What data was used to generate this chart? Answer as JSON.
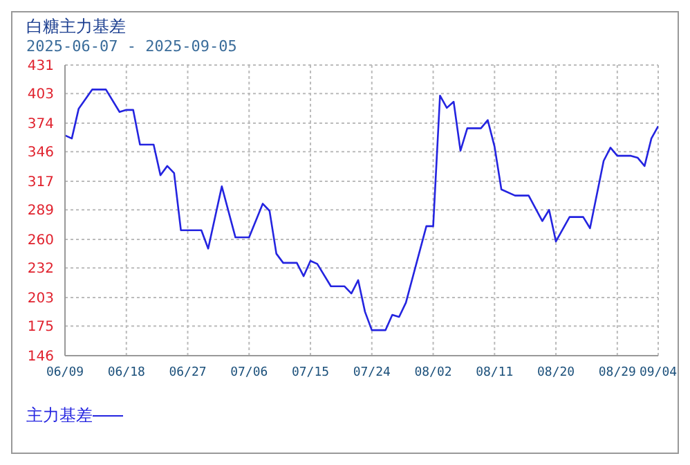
{
  "chart_data": {
    "type": "line",
    "title": "白糖主力基差",
    "subtitle": "2025-06-07 - 2025-09-05",
    "x": [
      "2025-06-09",
      "2025-06-10",
      "2025-06-11",
      "2025-06-13",
      "2025-06-15",
      "2025-06-17",
      "2025-06-18",
      "2025-06-19",
      "2025-06-20",
      "2025-06-22",
      "2025-06-23",
      "2025-06-24",
      "2025-06-25",
      "2025-06-26",
      "2025-06-27",
      "2025-06-29",
      "2025-06-30",
      "2025-07-02",
      "2025-07-04",
      "2025-07-06",
      "2025-07-08",
      "2025-07-09",
      "2025-07-10",
      "2025-07-11",
      "2025-07-13",
      "2025-07-14",
      "2025-07-15",
      "2025-07-16",
      "2025-07-18",
      "2025-07-20",
      "2025-07-21",
      "2025-07-22",
      "2025-07-23",
      "2025-07-24",
      "2025-07-26",
      "2025-07-27",
      "2025-07-28",
      "2025-07-29",
      "2025-08-01",
      "2025-08-02",
      "2025-08-03",
      "2025-08-04",
      "2025-08-05",
      "2025-08-06",
      "2025-08-07",
      "2025-08-09",
      "2025-08-10",
      "2025-08-11",
      "2025-08-12",
      "2025-08-14",
      "2025-08-16",
      "2025-08-18",
      "2025-08-19",
      "2025-08-20",
      "2025-08-22",
      "2025-08-24",
      "2025-08-25",
      "2025-08-27",
      "2025-08-28",
      "2025-08-29",
      "2025-08-31",
      "2025-09-01",
      "2025-09-02",
      "2025-09-03",
      "2025-09-04"
    ],
    "series": [
      {
        "name": "主力基差",
        "color": "#2424e0",
        "values": [
          362,
          359,
          388,
          407,
          407,
          385,
          387,
          387,
          353,
          353,
          323,
          332,
          325,
          269,
          269,
          269,
          251,
          312,
          262,
          262,
          295,
          288,
          246,
          237,
          237,
          224,
          239,
          236,
          214,
          214,
          207,
          220,
          189,
          171,
          171,
          186,
          184,
          198,
          273,
          273,
          401,
          389,
          395,
          347,
          369,
          369,
          377,
          351,
          309,
          303,
          303,
          278,
          289,
          258,
          282,
          282,
          271,
          337,
          350,
          342,
          342,
          340,
          332,
          359,
          371
        ]
      }
    ],
    "xlim": [
      "2025-06-09",
      "2025-09-04"
    ],
    "xticks": [
      {
        "value": "2025-06-09",
        "label": "06/09"
      },
      {
        "value": "2025-06-18",
        "label": "06/18"
      },
      {
        "value": "2025-06-27",
        "label": "06/27"
      },
      {
        "value": "2025-07-06",
        "label": "07/06"
      },
      {
        "value": "2025-07-15",
        "label": "07/15"
      },
      {
        "value": "2025-07-24",
        "label": "07/24"
      },
      {
        "value": "2025-08-02",
        "label": "08/02"
      },
      {
        "value": "2025-08-11",
        "label": "08/11"
      },
      {
        "value": "2025-08-20",
        "label": "08/20"
      },
      {
        "value": "2025-08-29",
        "label": "08/29"
      },
      {
        "value": "2025-09-04",
        "label": "09/04"
      }
    ],
    "ylim": [
      146,
      431
    ],
    "yticks": [
      146,
      175,
      203,
      232,
      260,
      289,
      317,
      346,
      374,
      403,
      431
    ],
    "grid": true,
    "legend": "bottom left",
    "marker": "none",
    "line_style": "solid"
  }
}
